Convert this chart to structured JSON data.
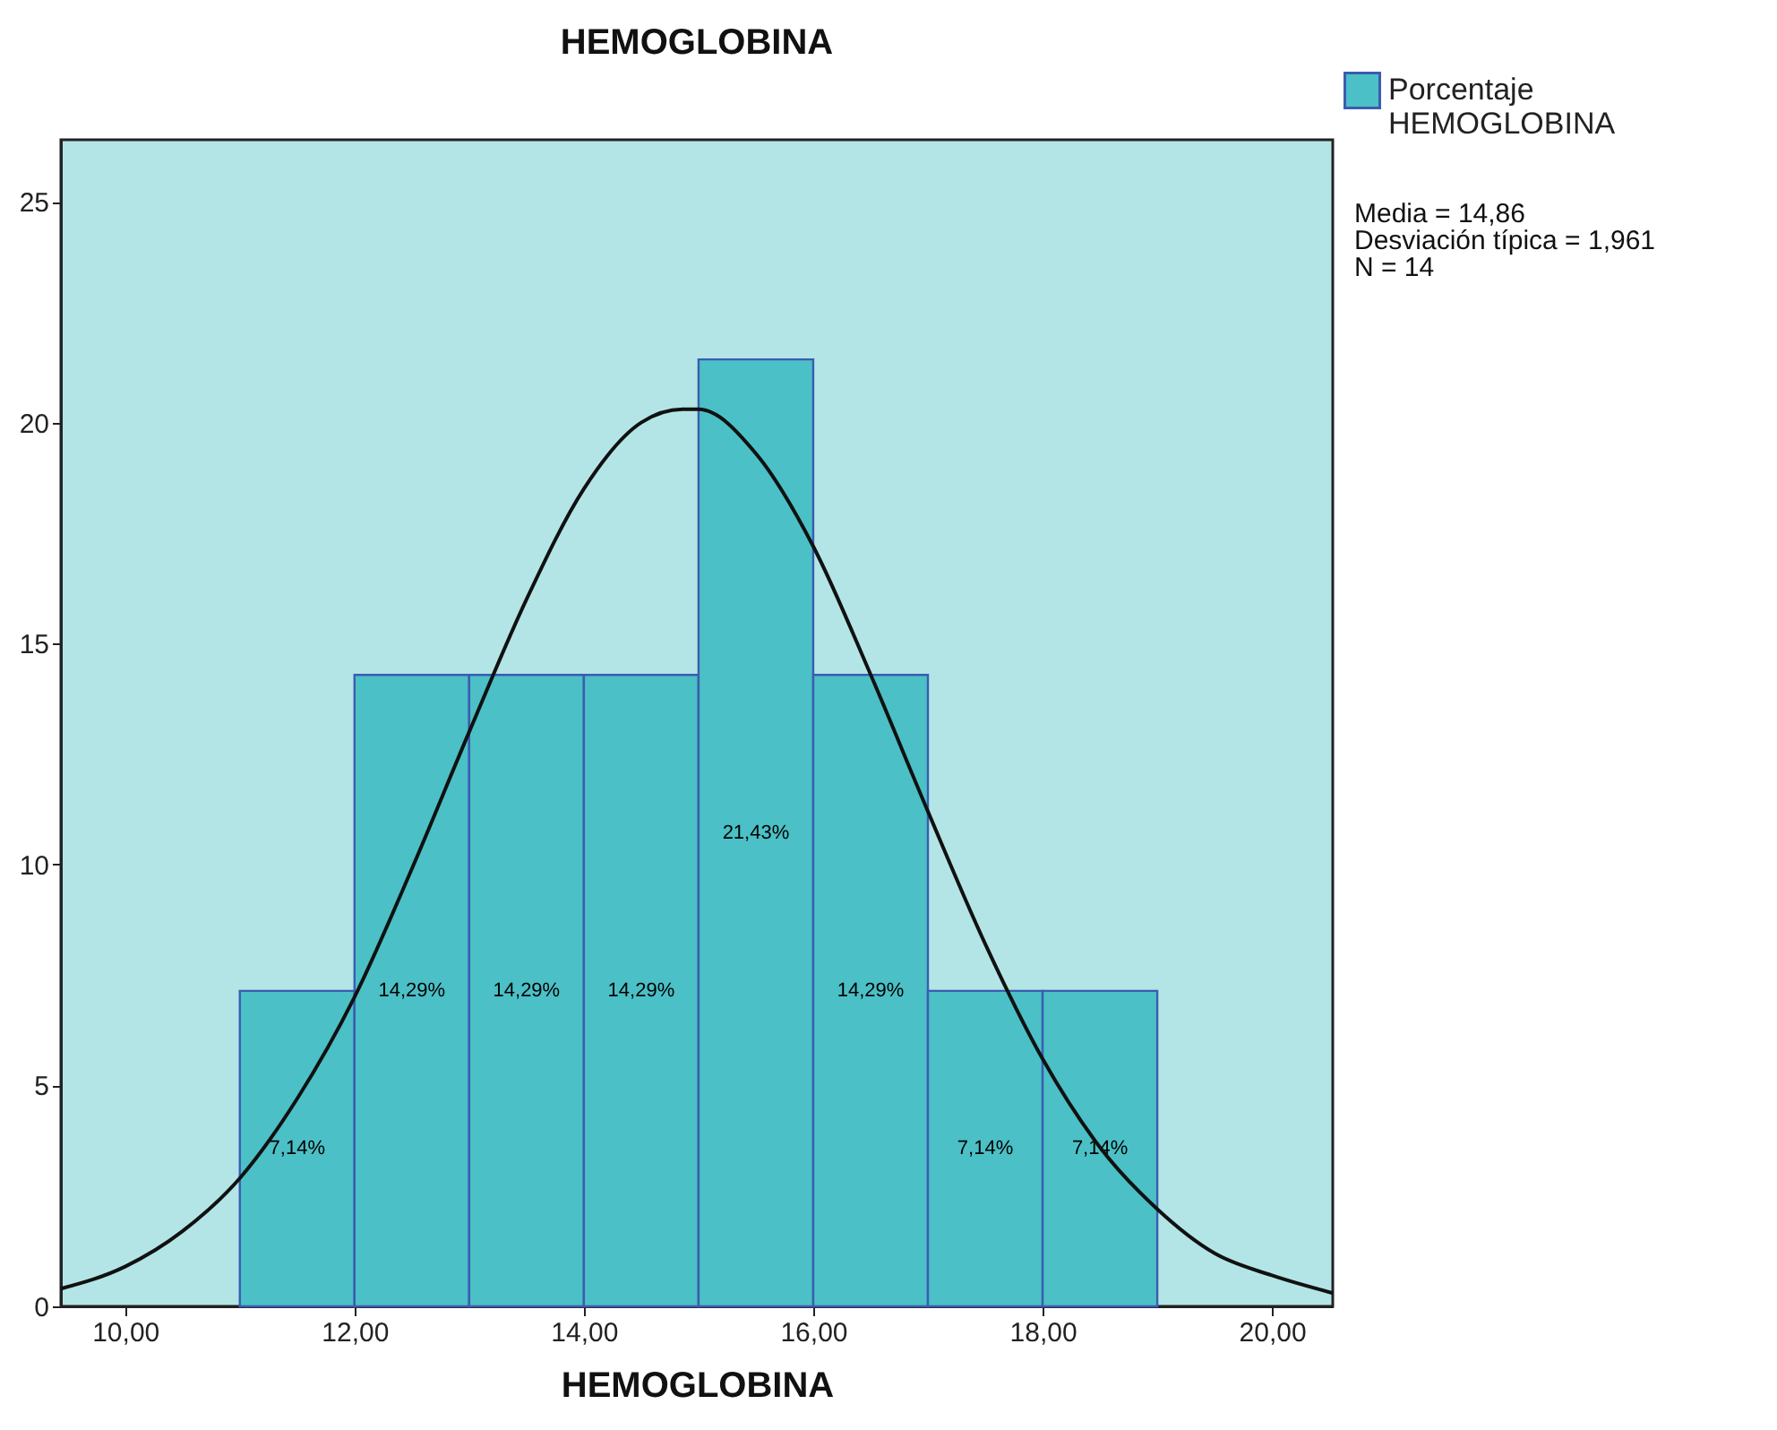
{
  "chart_data": {
    "type": "histogram",
    "title": "HEMOGLOBINA",
    "xlabel": "HEMOGLOBINA",
    "xlim": [
      9.44,
      20.53
    ],
    "ylim": [
      0,
      26.4
    ],
    "xticks": [
      {
        "value": 10,
        "label": "10,00"
      },
      {
        "value": 12,
        "label": "12,00"
      },
      {
        "value": 14,
        "label": "14,00"
      },
      {
        "value": 16,
        "label": "16,00"
      },
      {
        "value": 18,
        "label": "18,00"
      },
      {
        "value": 20,
        "label": "20,00"
      }
    ],
    "yticks": [
      0,
      5,
      10,
      15,
      20,
      25
    ],
    "grid": false,
    "legend": "top right",
    "annotations": [
      "Media = 14,86",
      "Desviación típica = 1,961",
      "N = 14"
    ],
    "series": [
      {
        "name": "Porcentaje HEMOGLOBINA",
        "color": "#4bc0c6",
        "bins": [
          11,
          12,
          13,
          14,
          15,
          16,
          17,
          18,
          19
        ],
        "values": [
          7.14,
          14.29,
          14.29,
          14.29,
          21.43,
          14.29,
          7.14,
          7.14
        ],
        "value_labels": [
          "7,14%",
          "14,29%",
          "14,29%",
          "14,29%",
          "21,43%",
          "14,29%",
          "7,14%",
          "7,14%"
        ]
      },
      {
        "type": "line",
        "color": "#111111",
        "x": [
          9.44,
          10,
          10.5,
          11,
          11.5,
          12,
          12.5,
          13,
          13.5,
          14,
          14.5,
          14.86,
          15,
          15.5,
          16,
          16.5,
          17,
          17.5,
          18,
          18.5,
          19,
          19.5,
          20,
          20.53
        ],
        "values": [
          0.4,
          0.9,
          1.7,
          2.9,
          4.7,
          7.0,
          9.9,
          13.0,
          16.0,
          18.5,
          20.0,
          20.3,
          20.3,
          19.3,
          17.2,
          14.3,
          11.2,
          8.2,
          5.6,
          3.6,
          2.2,
          1.2,
          0.7,
          0.3
        ]
      }
    ]
  }
}
